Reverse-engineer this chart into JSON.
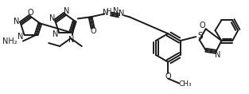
{
  "background_color": "#ffffff",
  "figsize": [
    3.13,
    1.18
  ],
  "dpi": 100,
  "line_color": "#1a1a1a",
  "bond_width": 1.4,
  "font_size": 7.5,
  "xlim": [
    0,
    313
  ],
  "ylim": [
    0,
    118
  ]
}
